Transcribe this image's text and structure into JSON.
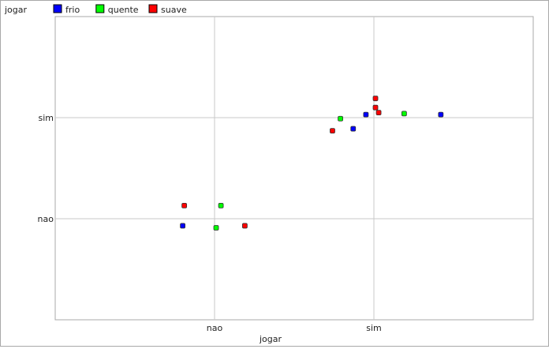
{
  "chart_data": {
    "type": "scatter",
    "title": "",
    "xlabel": "jogar",
    "ylabel": "jogar",
    "x_ticks": [
      "nao",
      "sim"
    ],
    "y_ticks": [
      "sim",
      "nao"
    ],
    "x_axis": {
      "categories": [
        "nao",
        "sim"
      ],
      "range": [
        -1,
        2
      ]
    },
    "y_axis": {
      "categories": [
        "nao",
        "sim"
      ],
      "range": [
        -1,
        2
      ]
    },
    "grid": true,
    "legend_position": "top-left",
    "series": [
      {
        "name": "frio",
        "color": "#0000ff",
        "points": [
          {
            "x": -0.2,
            "y": -0.07
          },
          {
            "x": 0.87,
            "y": 0.89
          },
          {
            "x": 0.95,
            "y": 1.03
          },
          {
            "x": 1.42,
            "y": 1.03
          }
        ]
      },
      {
        "name": "quente",
        "color": "#00ff00",
        "points": [
          {
            "x": 0.04,
            "y": 0.13
          },
          {
            "x": 0.01,
            "y": -0.09
          },
          {
            "x": 0.79,
            "y": 0.99
          },
          {
            "x": 1.19,
            "y": 1.04
          }
        ]
      },
      {
        "name": "suave",
        "color": "#ff0000",
        "points": [
          {
            "x": -0.19,
            "y": 0.13
          },
          {
            "x": 0.19,
            "y": -0.07
          },
          {
            "x": 0.74,
            "y": 0.87
          },
          {
            "x": 1.01,
            "y": 1.19
          },
          {
            "x": 1.01,
            "y": 1.1
          },
          {
            "x": 1.03,
            "y": 1.05
          }
        ]
      }
    ]
  }
}
